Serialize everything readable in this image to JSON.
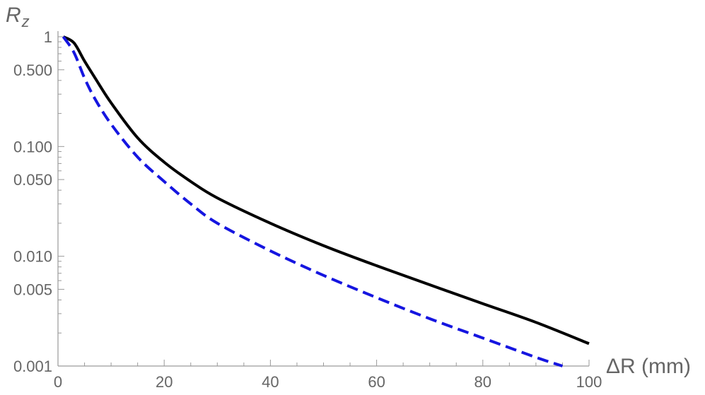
{
  "chart_data": {
    "type": "line",
    "xlabel": "ΔR (mm)",
    "ylabel": {
      "main": "R",
      "sub": "z"
    },
    "xlim": [
      0,
      100
    ],
    "ylim": [
      0.001,
      1
    ],
    "yscale": "log",
    "grid": false,
    "x_ticks": [
      0,
      20,
      40,
      60,
      80,
      100
    ],
    "x_tick_labels": [
      "0",
      "20",
      "40",
      "60",
      "80",
      "100"
    ],
    "y_ticks": [
      0.001,
      0.005,
      0.01,
      0.05,
      0.1,
      0.5,
      1
    ],
    "y_tick_labels": [
      "0.001",
      "0.005",
      "0.010",
      "0.050",
      "0.100",
      "0.500",
      "1"
    ],
    "series": [
      {
        "style": "solid",
        "color": "#000000",
        "x": [
          1,
          3,
          5,
          7,
          10,
          15,
          20,
          25,
          30,
          40,
          50,
          60,
          70,
          80,
          90,
          100
        ],
        "y": [
          1.0,
          0.88,
          0.6,
          0.42,
          0.25,
          0.12,
          0.072,
          0.048,
          0.034,
          0.02,
          0.0125,
          0.0082,
          0.0055,
          0.0037,
          0.0025,
          0.0016
        ]
      },
      {
        "style": "dashed",
        "color": "#1515e0",
        "x": [
          1,
          3,
          5,
          7,
          10,
          15,
          20,
          25,
          30,
          40,
          50,
          60,
          70,
          80,
          90,
          95
        ],
        "y": [
          1.0,
          0.72,
          0.42,
          0.27,
          0.16,
          0.08,
          0.048,
          0.03,
          0.02,
          0.0112,
          0.0067,
          0.0042,
          0.0027,
          0.0018,
          0.0012,
          0.001
        ]
      }
    ]
  }
}
